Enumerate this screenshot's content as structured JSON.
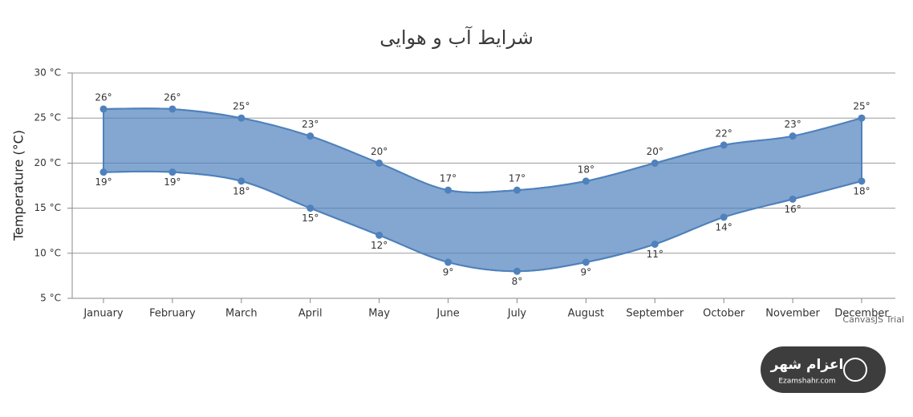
{
  "chart_data": {
    "type": "rangearea",
    "title": "شرایط آب و هوایی",
    "y_axis_label": "Temperature (°C)",
    "categories": [
      "January",
      "February",
      "March",
      "April",
      "May",
      "June",
      "July",
      "August",
      "September",
      "October",
      "November",
      "December"
    ],
    "high": {
      "values": [
        26,
        26,
        25,
        23,
        20,
        17,
        17,
        18,
        20,
        22,
        23,
        25
      ],
      "value_labels": [
        "26°",
        "26°",
        "25°",
        "23°",
        "20°",
        "17°",
        "17°",
        "18°",
        "20°",
        "22°",
        "23°",
        "25°"
      ]
    },
    "low": {
      "values": [
        19,
        19,
        18,
        15,
        12,
        9,
        8,
        9,
        11,
        14,
        16,
        18
      ],
      "value_labels": [
        "19°",
        "19°",
        "18°",
        "15°",
        "12°",
        "9°",
        "8°",
        "9°",
        "11°",
        "14°",
        "16°",
        "18°"
      ]
    },
    "color": "#4f81bc",
    "ylim": [
      5,
      30
    ],
    "yticks": [
      {
        "value": 5,
        "label": "5 °C"
      },
      {
        "value": 10,
        "label": "10 °C"
      },
      {
        "value": 15,
        "label": "15 °C"
      },
      {
        "value": 20,
        "label": "20 °C"
      },
      {
        "value": 25,
        "label": "25 °C"
      },
      {
        "value": 30,
        "label": "30 °C"
      }
    ],
    "grid": true,
    "watermark": "CanvasJS Trial"
  },
  "logo": {
    "name": "اعزام شهر",
    "site": "Ezamshahr.com"
  }
}
